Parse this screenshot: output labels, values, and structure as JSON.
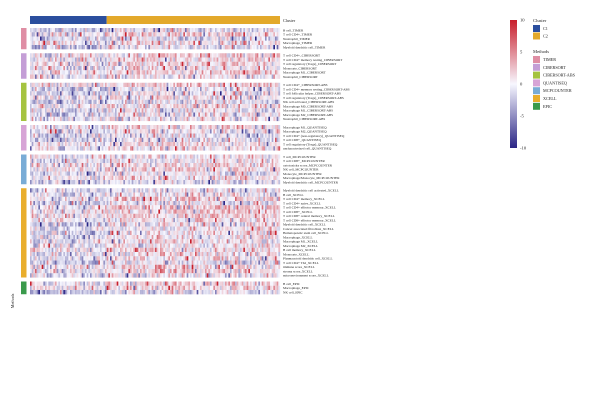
{
  "chart_data": {
    "type": "heatmap",
    "title": "",
    "n_samples": 150,
    "cluster_annotation": {
      "title": "Cluster",
      "groups": [
        {
          "name": "C1",
          "color": "#2b4f9e",
          "count": 46
        },
        {
          "name": "C2",
          "color": "#e3a92b",
          "count": 104
        }
      ]
    },
    "method_annotation": {
      "title": "Methods",
      "side_label": "Methods",
      "groups": [
        {
          "name": "TIMER",
          "color": "#df8ea4",
          "rows": [
            "B cell_TIMER",
            "T cell CD4+_TIMER",
            "Neutrophil_TIMER",
            "Macrophage_TIMER",
            "Myeloid dendritic cell_TIMER"
          ]
        },
        {
          "name": "CIBERSORT",
          "color": "#c49ed6",
          "rows": [
            "T cell CD4+_CIBERSORT",
            "T cell CD4+ memory resting_CIBERSORT",
            "T cell regulatory (Tregs)_CIBERSORT",
            "Monocyte_CIBERSORT",
            "Macrophage M1_CIBERSORT",
            "Neutrophil_CIBERSORT"
          ]
        },
        {
          "name": "CIBERSORT-ABS",
          "color": "#a5c33f",
          "rows": [
            "T cell CD4+_CIBERSORT-ABS",
            "T cell CD4+ memory resting_CIBERSORT-ABS",
            "T cell follicular helper_CIBERSORT-ABS",
            "T cell regulatory (Tregs)_CIBERSORT-ABS",
            "NK cell activated_CIBERSORT-ABS",
            "Macrophage M0_CIBERSORT-ABS",
            "Macrophage M1_CIBERSORT-ABS",
            "Macrophage M2_CIBERSORT-ABS",
            "Neutrophil_CIBERSORT-ABS"
          ]
        },
        {
          "name": "QUANTISEQ",
          "color": "#d7a4d6",
          "rows": [
            "Macrophage M1_QUANTISEQ",
            "Macrophage M2_QUANTISEQ",
            "T cell CD4+ (non-regulatory)_QUANTISEQ",
            "T cell CD8+_QUANTISEQ",
            "T cell regulatory (Tregs)_QUANTISEQ",
            "uncharacterized cell_QUANTISEQ"
          ]
        },
        {
          "name": "MCPCOUNTER",
          "color": "#79acd6",
          "rows": [
            "T cell_MCPCOUNTER",
            "T cell CD8+_MCPCOUNTER",
            "cytotoxicity score_MCPCOUNTER",
            "NK cell_MCPCOUNTER",
            "Monocyte_MCPCOUNTER",
            "Macrophage/Monocyte_MCPCOUNTER",
            "Myeloid dendritic cell_MCPCOUNTER"
          ]
        },
        {
          "name": "XCELL",
          "color": "#e9ae2c",
          "rows": [
            "Myeloid dendritic cell activated_XCELL",
            "B cell_XCELL",
            "T cell CD4+ memory_XCELL",
            "T cell CD4+ naive_XCELL",
            "T cell CD4+ effector memory_XCELL",
            "T cell CD8+_XCELL",
            "T cell CD8+ central memory_XCELL",
            "T cell CD8+ effector memory_XCELL",
            "Myeloid dendritic cell_XCELL",
            "Cancer associated fibroblast_XCELL",
            "Hematopoietic stem cell_XCELL",
            "Macrophage_XCELL",
            "Macrophage M1_XCELL",
            "Macrophage M2_XCELL",
            "B cell memory_XCELL",
            "Monocyte_XCELL",
            "Plasmacytoid dendritic cell_XCELL",
            "T cell CD4+ Th2_XCELL",
            "immune score_XCELL",
            "stroma score_XCELL",
            "microenvironment score_XCELL"
          ]
        },
        {
          "name": "EPIC",
          "color": "#3a9a4b",
          "rows": [
            "B cell_EPIC",
            "Macrophage_EPIC",
            "NK cell_EPIC"
          ]
        }
      ]
    },
    "color_scale": {
      "min": -10,
      "max": 10,
      "ticks": [
        10,
        5,
        0,
        -5,
        -10
      ],
      "colors": [
        "#2a2585",
        "#f7f7ff",
        "#c81e2b"
      ]
    },
    "legend_placement": "right",
    "values_note": ""
  }
}
